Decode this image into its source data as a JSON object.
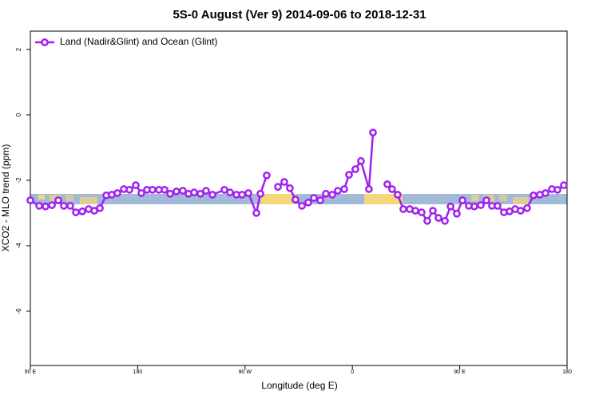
{
  "chart_data": {
    "type": "line",
    "title": "5S-0 August (Ver 9)   2014-09-06 to 2018-12-31",
    "x_label": "Longitude (deg E)",
    "y_label": "XCO2 - MLO trend (ppm)",
    "legend": "topleft",
    "x": [
      90.0,
      97.4,
      102.7,
      108.1,
      113.4,
      118.1,
      123.5,
      128.2,
      133.5,
      138.9,
      143.6,
      148.3,
      153.6,
      158.3,
      163.0,
      168.4,
      173.1,
      178.4,
      183.1,
      187.8,
      192.4,
      197.8,
      202.5,
      207.2,
      212.5,
      217.9,
      222.6,
      227.3,
      232.6,
      237.3,
      242.7,
      252.7,
      257.4,
      262.8,
      267.5,
      272.8,
      279.5,
      282.9,
      288.2,
      293.0,
      297.6,
      302.9,
      307.6,
      312.3,
      317.7,
      323.0,
      327.7,
      333.1,
      337.8,
      343.1,
      347.8,
      353.2,
      357.2,
      362.5,
      367.2,
      373.9,
      377.3,
      383.0,
      389.3,
      393.3,
      398.0,
      402.7,
      408.1,
      412.8,
      418.1,
      422.8,
      427.5,
      432.2,
      437.6,
      442.3,
      447.6,
      452.3,
      457.6,
      462.3,
      467.7,
      472.4,
      477.0,
      481.7,
      487.1,
      491.8,
      496.5,
      501.1,
      506.5,
      511.9,
      517.2,
      521.9,
      527.3,
      532.0,
      537.3
    ],
    "series": [
      {
        "name": "Land (Nadir&Glint) and Ocean (Glint)",
        "color": "#a020f0",
        "values": [
          -2.61,
          -2.78,
          -2.8,
          -2.76,
          -2.61,
          -2.78,
          -2.78,
          -2.98,
          -2.95,
          -2.88,
          -2.93,
          -2.85,
          -2.46,
          -2.44,
          -2.39,
          -2.27,
          -2.29,
          -2.15,
          -2.39,
          -2.29,
          -2.29,
          -2.29,
          -2.29,
          -2.41,
          -2.34,
          -2.32,
          -2.41,
          -2.37,
          -2.41,
          -2.32,
          -2.44,
          -2.29,
          -2.37,
          -2.44,
          -2.44,
          -2.39,
          -3.0,
          -2.41,
          -1.85,
          null,
          -2.2,
          -2.05,
          -2.24,
          -2.59,
          -2.78,
          -2.68,
          -2.54,
          -2.61,
          -2.41,
          -2.44,
          -2.32,
          -2.27,
          -1.83,
          -1.66,
          -1.41,
          -2.27,
          -0.54,
          null,
          -2.12,
          -2.27,
          -2.44,
          -2.88,
          -2.88,
          -2.93,
          -2.98,
          -3.24,
          -2.93,
          -3.15,
          -3.24,
          -2.8,
          -3.02,
          -2.61,
          -2.78,
          -2.8,
          -2.76,
          -2.61,
          -2.78,
          -2.78,
          -2.98,
          -2.95,
          -2.88,
          -2.93,
          -2.85,
          -2.46,
          -2.44,
          -2.39,
          -2.27,
          -2.29,
          -2.15
        ]
      }
    ],
    "xlim": [
      90,
      540
    ],
    "xticks": [
      {
        "value": 90,
        "label": "90 E"
      },
      180,
      {
        "value": 270,
        "label": "90 W"
      },
      {
        "value": 360,
        "label": "0"
      },
      {
        "value": 450,
        "label": "90 E"
      },
      {
        "value": 540,
        "label": "180"
      }
    ],
    "ylim": [
      -7.66,
      2.56
    ],
    "yticks": [
      -6,
      -4,
      -2,
      0,
      2
    ]
  }
}
